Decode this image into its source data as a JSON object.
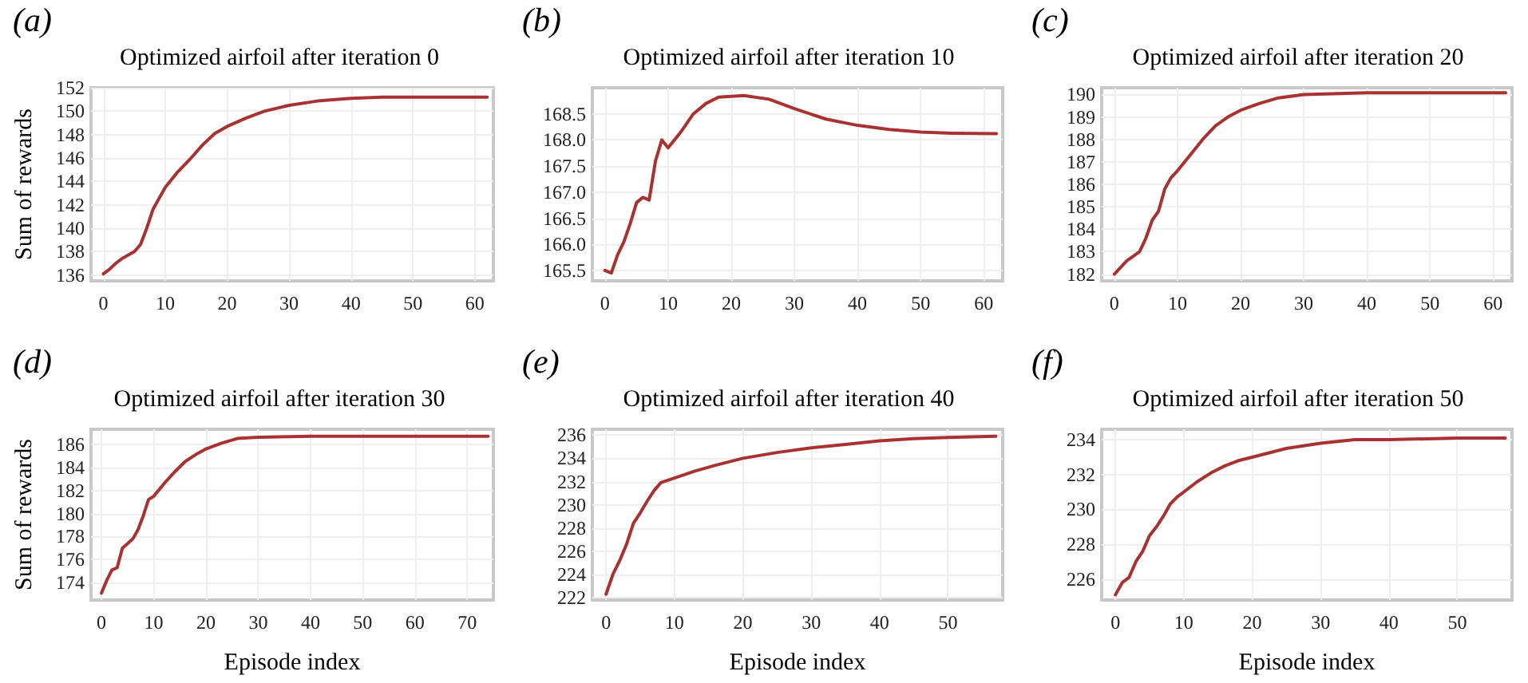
{
  "chart_data": [
    {
      "type": "line",
      "title": "Optimized airfoil after iteration 0",
      "ylabel": "Sum of rewards",
      "annotations": [
        "(a)"
      ],
      "grid": true,
      "marker": "none",
      "line_style": "solid",
      "xlim": [
        -2,
        63
      ],
      "xticks": [
        0,
        10,
        20,
        30,
        40,
        50,
        60
      ],
      "ylim": [
        135.5,
        152
      ],
      "yticks": [
        136,
        138,
        140,
        142,
        144,
        146,
        148,
        150,
        152
      ],
      "series": [
        {
          "color": "#a83232",
          "x": [
            0,
            1,
            2,
            3,
            5,
            6,
            7,
            8,
            10,
            12,
            14,
            16,
            18,
            20,
            23,
            26,
            30,
            35,
            40,
            45,
            50,
            62
          ],
          "values": [
            136.1,
            136.5,
            137,
            137.4,
            138,
            138.6,
            140,
            141.6,
            143.5,
            144.8,
            145.9,
            147.1,
            148.1,
            148.7,
            149.4,
            150,
            150.5,
            150.9,
            151.1,
            151.2,
            151.2,
            151.2
          ]
        }
      ]
    },
    {
      "type": "line",
      "title": "Optimized airfoil after iteration 10",
      "annotations": [
        "(b)"
      ],
      "grid": true,
      "marker": "none",
      "line_style": "solid",
      "xlim": [
        -2,
        63
      ],
      "xticks": [
        0,
        10,
        20,
        30,
        40,
        50,
        60
      ],
      "ylim": [
        165.3,
        169
      ],
      "yticks": [
        {
          "value": 165.5,
          "label": "165.5"
        },
        {
          "value": 166,
          "label": "166.0"
        },
        {
          "value": 166.5,
          "label": "166.5"
        },
        {
          "value": 167,
          "label": "167.0"
        },
        {
          "value": 167.5,
          "label": "167.5"
        },
        {
          "value": 168,
          "label": "168.0"
        },
        {
          "value": 168.5,
          "label": "168.5"
        }
      ],
      "series": [
        {
          "color": "#a83232",
          "x": [
            0,
            1,
            2,
            3,
            4,
            5,
            6,
            7,
            8,
            9,
            10,
            12,
            14,
            16,
            18,
            22,
            26,
            30,
            35,
            40,
            45,
            50,
            55,
            62
          ],
          "values": [
            165.5,
            165.45,
            165.8,
            166.05,
            166.4,
            166.8,
            166.9,
            166.85,
            167.6,
            168,
            167.85,
            168.15,
            168.5,
            168.7,
            168.82,
            168.85,
            168.78,
            168.6,
            168.4,
            168.28,
            168.2,
            168.15,
            168.13,
            168.12
          ]
        }
      ]
    },
    {
      "type": "line",
      "title": "Optimized airfoil after iteration 20",
      "annotations": [
        "(c)"
      ],
      "grid": true,
      "marker": "none",
      "line_style": "solid",
      "xlim": [
        -2,
        63
      ],
      "xticks": [
        0,
        10,
        20,
        30,
        40,
        50,
        60
      ],
      "ylim": [
        181.7,
        190.3
      ],
      "yticks": [
        182,
        183,
        184,
        185,
        186,
        187,
        188,
        189,
        190
      ],
      "series": [
        {
          "color": "#a83232",
          "x": [
            0,
            1,
            2,
            3,
            4,
            5,
            6,
            7,
            8,
            9,
            10,
            12,
            14,
            16,
            18,
            20,
            23,
            26,
            30,
            40,
            62
          ],
          "values": [
            182,
            182.3,
            182.6,
            182.8,
            183,
            183.6,
            184.4,
            184.8,
            185.8,
            186.3,
            186.6,
            187.3,
            188,
            188.6,
            189,
            189.3,
            189.6,
            189.85,
            190,
            190.08,
            190.08
          ]
        }
      ]
    },
    {
      "type": "line",
      "title": "Optimized airfoil after iteration 30",
      "xlabel": "Episode index",
      "ylabel": "Sum of rewards",
      "annotations": [
        "(d)"
      ],
      "grid": true,
      "marker": "none",
      "line_style": "solid",
      "xlim": [
        -2,
        75
      ],
      "xticks": [
        0,
        10,
        20,
        30,
        40,
        50,
        60,
        70
      ],
      "ylim": [
        172.5,
        187.3
      ],
      "yticks": [
        174,
        176,
        178,
        180,
        182,
        184,
        186
      ],
      "series": [
        {
          "color": "#a83232",
          "x": [
            0,
            1,
            2,
            3,
            4,
            5,
            6,
            7,
            8,
            9,
            10,
            12,
            14,
            16,
            18,
            20,
            23,
            26,
            30,
            40,
            74
          ],
          "values": [
            173.1,
            174.2,
            175.1,
            175.3,
            177,
            177.4,
            177.8,
            178.6,
            179.8,
            181.2,
            181.5,
            182.6,
            183.6,
            184.5,
            185.1,
            185.6,
            186.1,
            186.5,
            186.6,
            186.7,
            186.7
          ]
        }
      ]
    },
    {
      "type": "line",
      "title": "Optimized airfoil after iteration 40",
      "xlabel": "Episode index",
      "annotations": [
        "(e)"
      ],
      "grid": true,
      "marker": "none",
      "line_style": "solid",
      "xlim": [
        -2,
        58
      ],
      "xticks": [
        0,
        10,
        20,
        30,
        40,
        50
      ],
      "ylim": [
        221.8,
        236.5
      ],
      "yticks": [
        222,
        224,
        226,
        228,
        230,
        232,
        234,
        236
      ],
      "series": [
        {
          "color": "#a83232",
          "x": [
            0,
            1,
            2,
            3,
            4,
            5,
            6,
            7,
            8,
            10,
            13,
            16,
            20,
            25,
            30,
            35,
            40,
            45,
            50,
            57
          ],
          "values": [
            222.3,
            224,
            225.2,
            226.6,
            228.4,
            229.3,
            230.3,
            231.2,
            231.9,
            232.3,
            232.9,
            233.4,
            234,
            234.5,
            234.9,
            235.2,
            235.5,
            235.7,
            235.8,
            235.9
          ]
        }
      ]
    },
    {
      "type": "line",
      "title": "Optimized airfoil after iteration 50",
      "xlabel": "Episode index",
      "annotations": [
        "(f)"
      ],
      "grid": true,
      "marker": "none",
      "line_style": "solid",
      "xlim": [
        -2,
        58
      ],
      "xticks": [
        0,
        10,
        20,
        30,
        40,
        50
      ],
      "ylim": [
        224.8,
        234.6
      ],
      "yticks": [
        226,
        228,
        230,
        232,
        234
      ],
      "series": [
        {
          "color": "#a83232",
          "x": [
            0,
            1,
            2,
            3,
            4,
            5,
            6,
            7,
            8,
            9,
            10,
            12,
            14,
            16,
            18,
            20,
            25,
            30,
            35,
            40,
            50,
            57
          ],
          "values": [
            225.1,
            225.8,
            226.1,
            227,
            227.6,
            228.5,
            229,
            229.6,
            230.3,
            230.7,
            231,
            231.6,
            232.1,
            232.5,
            232.8,
            233,
            233.5,
            233.8,
            234,
            234,
            234.1,
            234.1
          ]
        }
      ]
    }
  ]
}
